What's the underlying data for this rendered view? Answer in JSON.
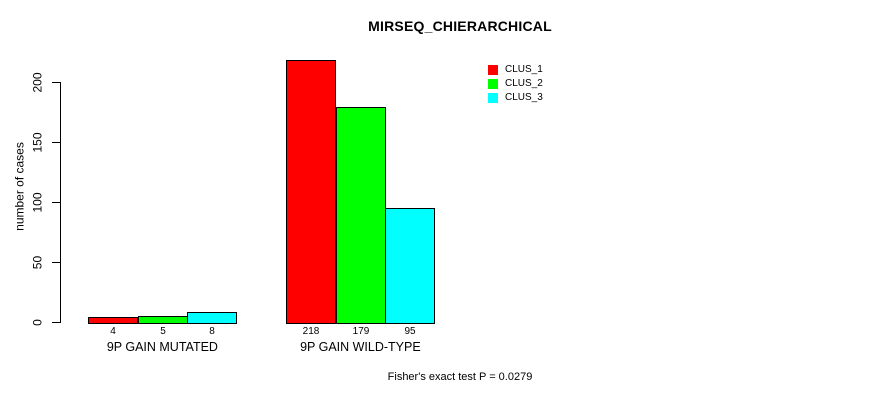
{
  "chart_data": {
    "type": "bar",
    "title": "MIRSEQ_CHIERARCHICAL",
    "ylabel": "number of cases",
    "xlabel": "",
    "categories": [
      "9P GAIN MUTATED",
      "9P GAIN WILD-TYPE"
    ],
    "series": [
      {
        "name": "CLUS_1",
        "color": "#FF0000",
        "values": [
          4,
          218
        ]
      },
      {
        "name": "CLUS_2",
        "color": "#00FF00",
        "values": [
          5,
          179
        ]
      },
      {
        "name": "CLUS_3",
        "color": "#00FFFF",
        "values": [
          8,
          95
        ]
      }
    ],
    "bar_value_labels": [
      [
        "4",
        "5",
        "8"
      ],
      [
        "218",
        "179",
        "95"
      ]
    ],
    "yticks": [
      0,
      50,
      100,
      150,
      200
    ],
    "ylim": [
      0,
      220
    ],
    "grid": false,
    "legend_position": "top-right",
    "footnote": "Fisher's exact test P = 0.0279",
    "axis_color": "#000000",
    "background_color": "#FFFFFF"
  }
}
